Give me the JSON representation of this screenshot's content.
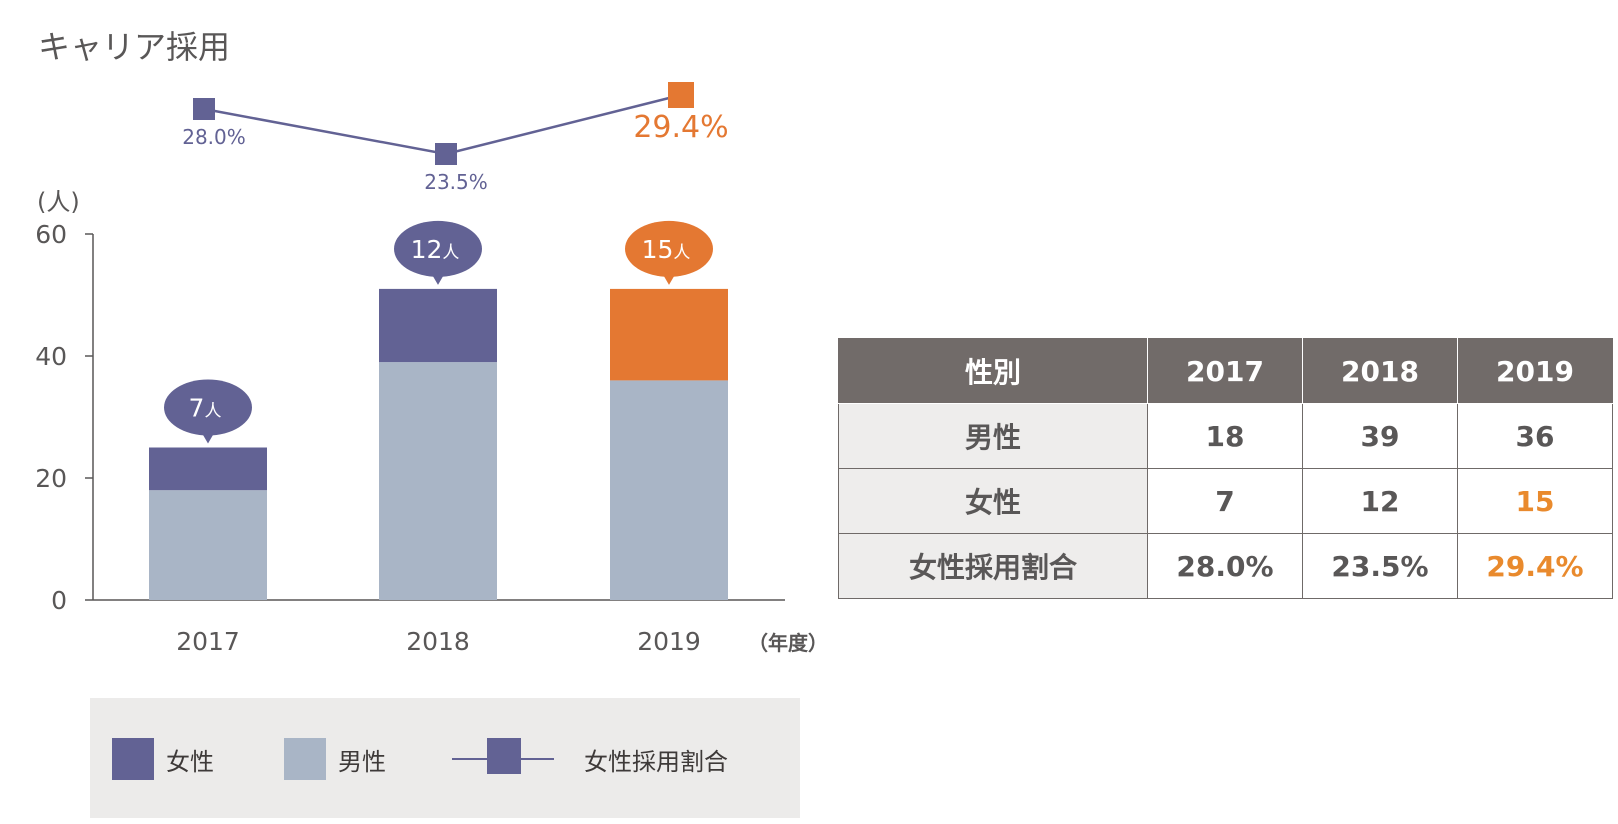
{
  "page_title": "キャリア採用",
  "colors": {
    "female": "#626294",
    "male": "#a9b5c6",
    "highlight": "#e47832",
    "axis": "#595757",
    "table_header_bg": "#716b69",
    "table_rowhead_bg": "#eeedec",
    "legend_bg": "#ecebea"
  },
  "chart_data": {
    "type": "bar",
    "stacked": true,
    "categories": [
      "2017",
      "2018",
      "2019"
    ],
    "series": [
      {
        "name": "男性",
        "values": [
          18,
          39,
          36
        ]
      },
      {
        "name": "女性",
        "values": [
          7,
          12,
          15
        ]
      }
    ],
    "bubble_labels": [
      "7",
      "12",
      "15"
    ],
    "bubble_unit": "人",
    "ratio_line": {
      "name": "女性採用割合",
      "values": [
        28.0,
        23.5,
        29.4
      ],
      "labels": [
        "28.0%",
        "23.5%",
        "29.4%"
      ]
    },
    "highlight_category": "2019",
    "ylabel": "(人)",
    "xlabel": "（年度）",
    "yticks": [
      "0",
      "20",
      "40",
      "60"
    ],
    "ylim": [
      0,
      60
    ],
    "grid": false,
    "legend": {
      "position": "bottom",
      "items": [
        "女性",
        "男性",
        "女性採用割合"
      ]
    }
  },
  "table": {
    "headers": [
      "性別",
      "2017",
      "2018",
      "2019"
    ],
    "rows": [
      [
        "男性",
        "18",
        "39",
        "36"
      ],
      [
        "女性",
        "7",
        "12",
        "15"
      ],
      [
        "女性採用割合",
        "28.0%",
        "23.5%",
        "29.4%"
      ]
    ]
  }
}
